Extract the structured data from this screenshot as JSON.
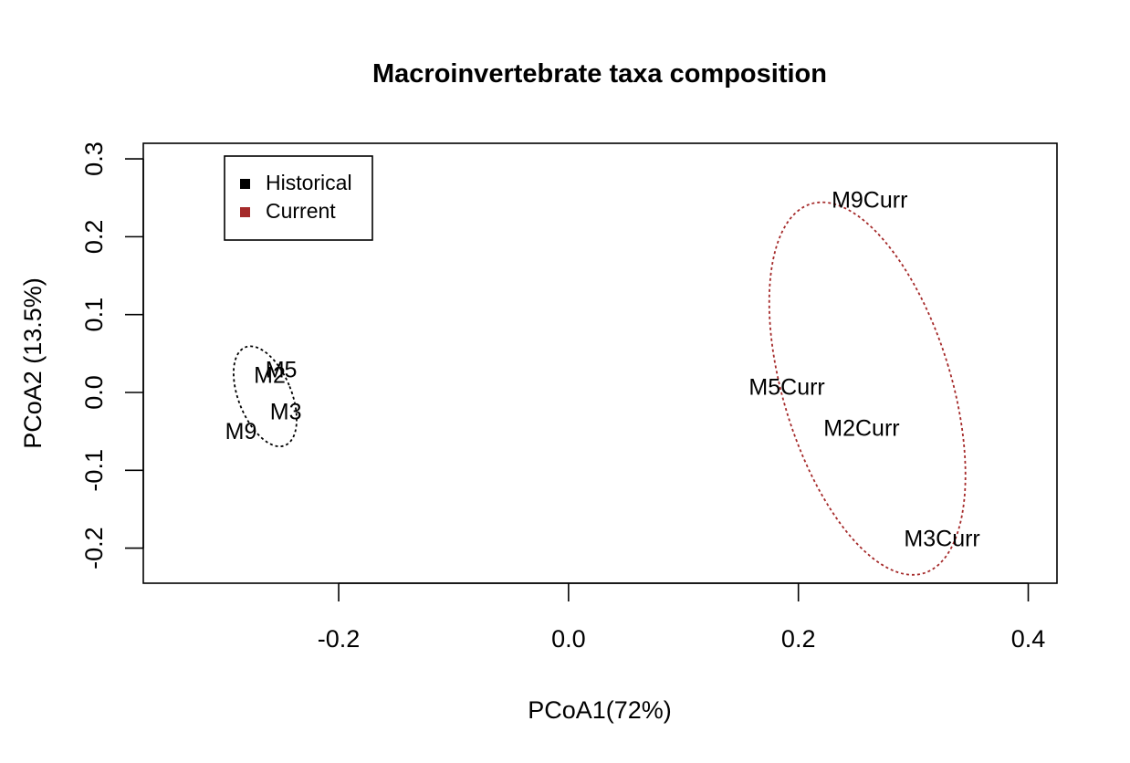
{
  "chart_data": {
    "type": "scatter",
    "title": "Macroinvertebrate taxa composition",
    "xlabel": "PCoA1(72%)",
    "ylabel": "PCoA2 (13.5%)",
    "xlim": [
      -0.37,
      0.425
    ],
    "ylim": [
      -0.245,
      0.32
    ],
    "x_ticks": [
      -0.2,
      0.0,
      0.2,
      0.4
    ],
    "x_tick_labels": [
      "-0.2",
      "0.0",
      "0.2",
      "0.4"
    ],
    "y_ticks": [
      -0.2,
      -0.1,
      0.0,
      0.1,
      0.2,
      0.3
    ],
    "y_tick_labels": [
      "-0.2",
      "-0.1",
      "0.0",
      "0.1",
      "0.2",
      "0.3"
    ],
    "grid": false,
    "legend": {
      "position": "top-left",
      "entries": [
        {
          "label": "Historical",
          "color": "#000000"
        },
        {
          "label": "Current",
          "color": "#a52a2a"
        }
      ]
    },
    "series": [
      {
        "name": "Historical",
        "color": "#000000",
        "points": [
          {
            "label": "M2",
            "x": -0.26,
            "y": 0.02
          },
          {
            "label": "M5",
            "x": -0.25,
            "y": 0.027
          },
          {
            "label": "M3",
            "x": -0.246,
            "y": -0.027
          },
          {
            "label": "M9",
            "x": -0.285,
            "y": -0.052
          }
        ],
        "ellipse": {
          "cx": -0.264,
          "cy": -0.005,
          "rx": 0.023,
          "ry": 0.068,
          "angle": 22
        }
      },
      {
        "name": "Current",
        "color": "#a52a2a",
        "points": [
          {
            "label": "M9Curr",
            "x": 0.262,
            "y": 0.245
          },
          {
            "label": "M5Curr",
            "x": 0.19,
            "y": 0.005
          },
          {
            "label": "M2Curr",
            "x": 0.255,
            "y": -0.048
          },
          {
            "label": "M3Curr",
            "x": 0.325,
            "y": -0.19
          }
        ],
        "ellipse": {
          "cx": 0.26,
          "cy": 0.005,
          "rx": 0.073,
          "ry": 0.248,
          "angle": 17
        }
      }
    ]
  }
}
